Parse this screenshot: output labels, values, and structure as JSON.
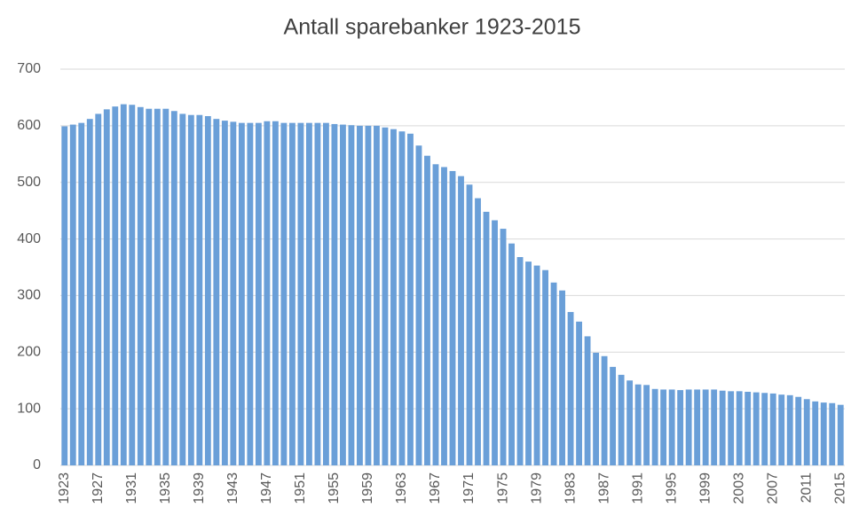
{
  "chart_data": {
    "type": "bar",
    "title": "Antall sparebanker 1923-2015",
    "categories": [
      "1923",
      null,
      null,
      null,
      "1927",
      null,
      null,
      null,
      "1931",
      null,
      null,
      null,
      "1935",
      null,
      null,
      null,
      "1939",
      null,
      null,
      null,
      "1943",
      null,
      null,
      null,
      "1947",
      null,
      null,
      null,
      "1951",
      null,
      null,
      null,
      "1955",
      null,
      null,
      null,
      "1959",
      null,
      null,
      null,
      "1963",
      null,
      null,
      null,
      "1967",
      null,
      null,
      null,
      "1971",
      null,
      null,
      null,
      "1975",
      null,
      null,
      null,
      "1979",
      null,
      null,
      null,
      "1983",
      null,
      null,
      null,
      "1987",
      null,
      null,
      null,
      "1991",
      null,
      null,
      null,
      "1995",
      null,
      null,
      null,
      "1999",
      null,
      null,
      null,
      "2003",
      null,
      null,
      null,
      "2007",
      null,
      null,
      null,
      "2011",
      null,
      null,
      null,
      "2015"
    ],
    "values": [
      599,
      602,
      605,
      612,
      621,
      629,
      634,
      638,
      637,
      633,
      630,
      630,
      630,
      626,
      621,
      619,
      619,
      617,
      612,
      609,
      607,
      605,
      605,
      605,
      608,
      608,
      605,
      605,
      605,
      605,
      605,
      605,
      603,
      602,
      601,
      600,
      600,
      600,
      597,
      594,
      590,
      586,
      565,
      547,
      532,
      527,
      520,
      511,
      496,
      472,
      448,
      433,
      418,
      392,
      368,
      360,
      353,
      345,
      323,
      309,
      271,
      254,
      228,
      199,
      193,
      174,
      160,
      150,
      143,
      142,
      135,
      134,
      134,
      133,
      134,
      134,
      134,
      134,
      132,
      131,
      131,
      130,
      129,
      128,
      127,
      125,
      124,
      121,
      117,
      113,
      111,
      110,
      107
    ],
    "color": "#6a9fd8",
    "ylim": [
      0,
      700
    ],
    "yticks": [
      0,
      100,
      200,
      300,
      400,
      500,
      600,
      700
    ],
    "grid": true
  }
}
